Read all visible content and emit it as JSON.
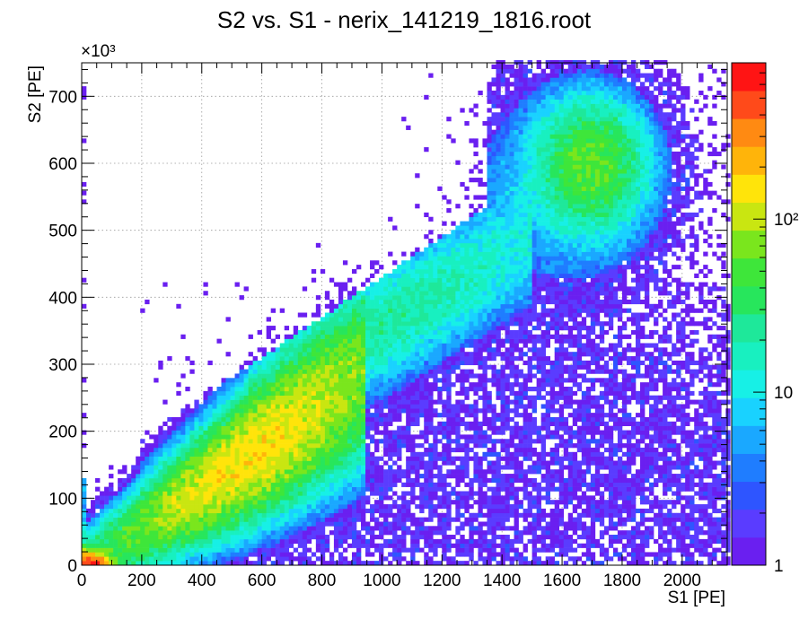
{
  "chart_data": {
    "type": "heatmap",
    "title": "S2 vs. S1 - nerix_141219_1816.root",
    "xlabel": "S1 [PE]",
    "ylabel": "S2 [PE]",
    "y_multiplier": "×10³",
    "xlim": [
      0,
      2150
    ],
    "ylim": [
      0,
      750000
    ],
    "x_ticks": [
      0,
      200,
      400,
      600,
      800,
      1000,
      1200,
      1400,
      1600,
      1800,
      2000
    ],
    "y_ticks": [
      0,
      100,
      200,
      300,
      400,
      500,
      600,
      700
    ],
    "grid": true,
    "bin_width_x": 15,
    "bin_width_y": 6500,
    "z_scale": "log",
    "zlim": [
      1,
      800
    ],
    "z_tick_labels": [
      "1",
      "10",
      "10²"
    ],
    "z_tick_values": [
      1,
      10,
      100
    ],
    "palette": [
      "#6a1ff0",
      "#5a3cff",
      "#2e55ff",
      "#1f7dff",
      "#1aa8ff",
      "#19d2ff",
      "#17f0e6",
      "#18f0c0",
      "#1ee89a",
      "#27e65c",
      "#3ee63a",
      "#7ae61d",
      "#c9e611",
      "#ffe40a",
      "#ffb40a",
      "#ff8a12",
      "#ff4a1a",
      "#ff1414"
    ],
    "populations": [
      {
        "name": "low-energy band",
        "x_range": [
          0,
          900
        ],
        "y_center_slope": 290,
        "y_width": 60000,
        "peak_counts": 120
      },
      {
        "name": "low-energy corner",
        "x_range": [
          0,
          140
        ],
        "y_range": [
          0,
          25000
        ],
        "peak_counts": 700
      },
      {
        "name": "mid band",
        "x_range": [
          600,
          1450
        ],
        "y_center_slope": 330,
        "y_width": 70000,
        "peak_counts": 40
      },
      {
        "name": "high-energy cluster",
        "x_center": 1700,
        "y_center": 600000,
        "x_sigma": 130,
        "y_sigma": 70000,
        "peak_counts": 55
      },
      {
        "name": "diffuse background",
        "x_range": [
          200,
          2150
        ],
        "y_range": [
          0,
          400000
        ],
        "peak_counts": 2
      }
    ]
  }
}
